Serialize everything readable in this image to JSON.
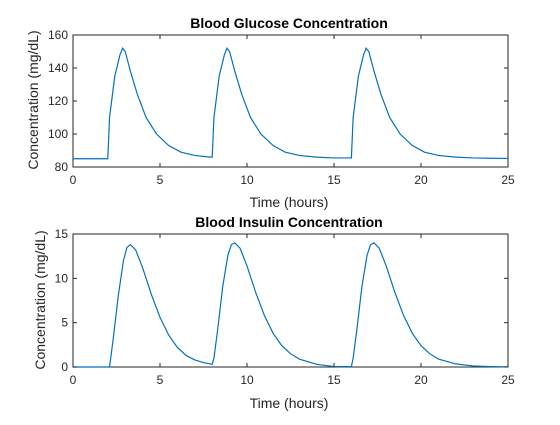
{
  "chart_data": [
    {
      "type": "line",
      "title": "Blood Glucose Concentration",
      "xlabel": "Time (hours)",
      "ylabel": "Concentration (mg/dL)",
      "xlim": [
        0,
        25
      ],
      "ylim": [
        80,
        160
      ],
      "xticks": [
        0,
        5,
        10,
        15,
        20,
        25
      ],
      "yticks": [
        80,
        100,
        120,
        140,
        160
      ],
      "grid": false,
      "line_color": "#0072bd",
      "series": [
        {
          "x": [
            0,
            2,
            2.1,
            2.4,
            2.7,
            2.85,
            3.0,
            3.3,
            3.7,
            4.2,
            4.8,
            5.5,
            6.2,
            7.0,
            7.9,
            8.0,
            8.1,
            8.4,
            8.7,
            8.85,
            9.0,
            9.3,
            9.7,
            10.2,
            10.8,
            11.5,
            12.2,
            13.0,
            14.0,
            15.0,
            15.9,
            16.0,
            16.1,
            16.4,
            16.7,
            16.85,
            17.0,
            17.3,
            17.7,
            18.2,
            18.8,
            19.5,
            20.2,
            21.0,
            22.0,
            23.0,
            24.0,
            25.0
          ],
          "y": [
            85,
            85,
            110,
            135,
            148,
            152,
            150,
            138,
            124,
            110,
            100,
            93,
            89,
            87,
            86,
            86,
            110,
            135,
            148,
            152,
            150,
            138,
            124,
            110,
            100,
            93,
            89,
            87,
            86,
            85.5,
            85.5,
            85.5,
            110,
            135,
            148,
            152,
            150,
            138,
            124,
            110,
            100,
            93,
            89,
            87,
            86,
            85.5,
            85.3,
            85.2
          ]
        }
      ]
    },
    {
      "type": "line",
      "title": "Blood Insulin Concentration",
      "xlabel": "Time (hours)",
      "ylabel": "Concentration (mg/dL)",
      "xlim": [
        0,
        25
      ],
      "ylim": [
        0,
        15
      ],
      "xticks": [
        0,
        5,
        10,
        15,
        20,
        25
      ],
      "yticks": [
        0,
        5,
        10,
        15
      ],
      "grid": false,
      "line_color": "#0072bd",
      "series": [
        {
          "x": [
            0,
            2.1,
            2.3,
            2.6,
            2.9,
            3.1,
            3.3,
            3.6,
            4.0,
            4.5,
            5.0,
            5.5,
            6.0,
            6.5,
            7.0,
            7.5,
            8.0,
            8.1,
            8.3,
            8.6,
            8.9,
            9.1,
            9.3,
            9.6,
            10.0,
            10.5,
            11.0,
            11.5,
            12.0,
            12.5,
            13.0,
            14.0,
            15.0,
            16.0,
            16.1,
            16.3,
            16.6,
            16.9,
            17.1,
            17.3,
            17.6,
            18.0,
            18.5,
            19.0,
            19.5,
            20.0,
            20.5,
            21.0,
            22.0,
            23.0,
            24.0,
            25.0
          ],
          "y": [
            0,
            0,
            3,
            8,
            12,
            13.5,
            13.8,
            13.2,
            11.2,
            8.2,
            5.6,
            3.6,
            2.2,
            1.3,
            0.8,
            0.5,
            0.3,
            1.0,
            4.0,
            9.0,
            12.6,
            13.8,
            14.0,
            13.4,
            11.4,
            8.4,
            5.8,
            3.8,
            2.4,
            1.5,
            0.9,
            0.3,
            0.05,
            0.05,
            1.0,
            4.0,
            9.0,
            12.6,
            13.8,
            14.0,
            13.4,
            11.4,
            8.4,
            5.8,
            3.8,
            2.4,
            1.5,
            0.9,
            0.35,
            0.12,
            0.05,
            0.02
          ]
        }
      ]
    }
  ]
}
